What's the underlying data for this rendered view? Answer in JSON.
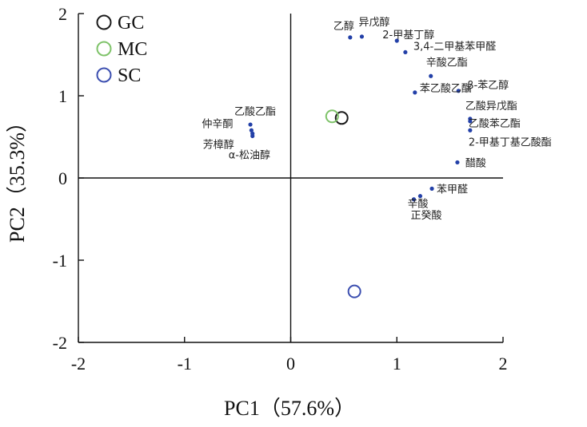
{
  "chart_data": {
    "type": "scatter",
    "title": "",
    "xlabel": "PC1（57.6%）",
    "ylabel": "PC2（35.3%）",
    "xlim": [
      -2,
      2
    ],
    "ylim": [
      -2,
      2
    ],
    "xticks": [
      -2,
      -1,
      0,
      1,
      2
    ],
    "yticks": [
      -2,
      -1,
      0,
      1,
      2
    ],
    "xtick_labels": [
      "-2",
      "-1",
      "0",
      "1",
      "2"
    ],
    "ytick_labels": [
      "-2",
      "-1",
      "0",
      "1",
      "2"
    ],
    "legend_position": "top-left",
    "groups": [
      {
        "name": "GC",
        "color": "#1a1a1a",
        "x": 0.48,
        "y": 0.73
      },
      {
        "name": "MC",
        "color": "#7fc36a",
        "x": 0.39,
        "y": 0.75
      },
      {
        "name": "SC",
        "color": "#3c4fb0",
        "x": 0.6,
        "y": -1.38
      }
    ],
    "variable_color": "#2340a8",
    "variables": [
      {
        "name": "乙醇",
        "x": 0.56,
        "y": 1.71
      },
      {
        "name": "异戊醇",
        "x": 0.67,
        "y": 1.72
      },
      {
        "name": "2-甲基丁醇",
        "x": 1.0,
        "y": 1.67
      },
      {
        "name": "3,4-二甲基苯甲醛",
        "x": 1.08,
        "y": 1.53
      },
      {
        "name": "辛酸乙酯",
        "x": 1.32,
        "y": 1.24
      },
      {
        "name": "苯乙酸乙酯",
        "x": 1.17,
        "y": 1.04
      },
      {
        "name": "β-苯乙醇",
        "x": 1.58,
        "y": 1.06
      },
      {
        "name": "乙酸异戊酯",
        "x": 1.69,
        "y": 0.72
      },
      {
        "name": "乙酸苯乙酯",
        "x": 1.69,
        "y": 0.69
      },
      {
        "name": "2-甲基丁基乙酸酯",
        "x": 1.69,
        "y": 0.58
      },
      {
        "name": "醋酸",
        "x": 1.57,
        "y": 0.19
      },
      {
        "name": "苯甲醛",
        "x": 1.33,
        "y": -0.13
      },
      {
        "name": "辛酸",
        "x": 1.22,
        "y": -0.22
      },
      {
        "name": "正癸酸",
        "x": 1.16,
        "y": -0.26
      },
      {
        "name": "乙酸乙酯",
        "x": -0.38,
        "y": 0.65
      },
      {
        "name": "仲辛酮",
        "x": -0.37,
        "y": 0.58
      },
      {
        "name": "芳樟醇",
        "x": -0.36,
        "y": 0.54
      },
      {
        "name": "α-松油醇",
        "x": -0.36,
        "y": 0.51
      }
    ]
  }
}
